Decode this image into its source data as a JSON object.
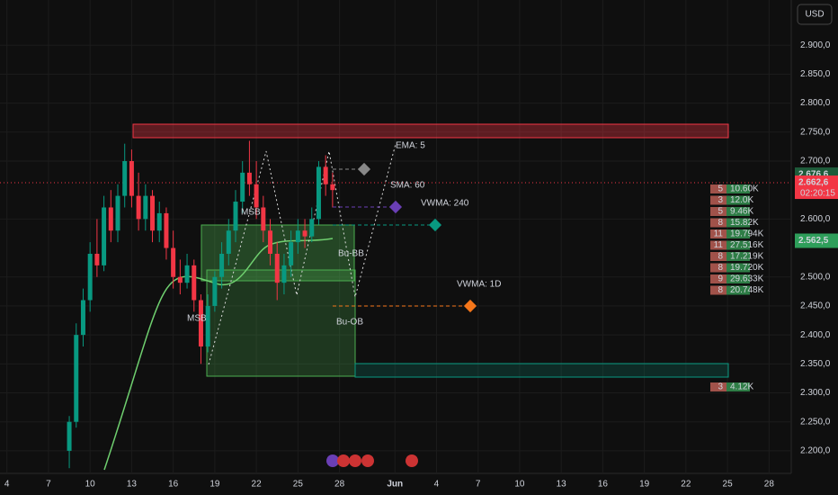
{
  "chart_data": {
    "type": "candlestick",
    "currency": "USD",
    "x": [
      4.5,
      5,
      5.5,
      6,
      6.5,
      7,
      7.5,
      8,
      8.5,
      9,
      9.5,
      10,
      10.5,
      11,
      11.5,
      12,
      12.5,
      13,
      13.5,
      14,
      14.5,
      15,
      15.5,
      16,
      16.5,
      17,
      17.5,
      18,
      18.5,
      19,
      19.5,
      20,
      20.5,
      21,
      21.5,
      22,
      22.5,
      23,
      23.5
    ],
    "open": [
      2200,
      2250,
      2400,
      2460,
      2540,
      2520,
      2620,
      2580,
      2640,
      2700,
      2640,
      2600,
      2640,
      2580,
      2610,
      2550,
      2500,
      2490,
      2520,
      2460,
      2380,
      2450,
      2500,
      2540,
      2580,
      2630,
      2680,
      2660,
      2620,
      2580,
      2540,
      2490,
      2520,
      2560,
      2580,
      2570,
      2600,
      2690,
      2660
    ],
    "high": [
      2260,
      2420,
      2480,
      2560,
      2600,
      2640,
      2650,
      2660,
      2730,
      2720,
      2680,
      2660,
      2650,
      2630,
      2620,
      2580,
      2530,
      2540,
      2530,
      2470,
      2470,
      2510,
      2560,
      2600,
      2650,
      2700,
      2735,
      2700,
      2640,
      2600,
      2560,
      2540,
      2580,
      2600,
      2600,
      2620,
      2700,
      2710,
      2680
    ],
    "low": [
      2170,
      2240,
      2380,
      2440,
      2500,
      2510,
      2560,
      2560,
      2620,
      2620,
      2580,
      2580,
      2560,
      2560,
      2530,
      2480,
      2470,
      2480,
      2440,
      2350,
      2370,
      2440,
      2480,
      2520,
      2560,
      2610,
      2640,
      2600,
      2560,
      2520,
      2460,
      2470,
      2500,
      2540,
      2550,
      2560,
      2590,
      2640,
      2620
    ],
    "close": [
      2250,
      2400,
      2460,
      2540,
      2520,
      2620,
      2580,
      2640,
      2700,
      2640,
      2600,
      2640,
      2580,
      2610,
      2550,
      2500,
      2490,
      2520,
      2460,
      2380,
      2450,
      2500,
      2540,
      2580,
      2630,
      2680,
      2660,
      2620,
      2580,
      2540,
      2490,
      2520,
      2560,
      2580,
      2570,
      2600,
      2690,
      2660,
      2650
    ],
    "up_color": "#089981",
    "down_color": "#f23645",
    "xlim": [
      -0.5,
      56.6
    ],
    "ylim": [
      2161,
      2978
    ],
    "grid": true,
    "xticks": [
      {
        "value": 0,
        "label": "4"
      },
      {
        "value": 3,
        "label": "7"
      },
      {
        "value": 6,
        "label": "10"
      },
      {
        "value": 9,
        "label": "13"
      },
      {
        "value": 12,
        "label": "16"
      },
      {
        "value": 15,
        "label": "19"
      },
      {
        "value": 18,
        "label": "22"
      },
      {
        "value": 21,
        "label": "25"
      },
      {
        "value": 24,
        "label": "28"
      },
      {
        "value": 28,
        "label": "Jun"
      },
      {
        "value": 31,
        "label": "4"
      },
      {
        "value": 34,
        "label": "7"
      },
      {
        "value": 37,
        "label": "10"
      },
      {
        "value": 40,
        "label": "13"
      },
      {
        "value": 43,
        "label": "16"
      },
      {
        "value": 46,
        "label": "19"
      },
      {
        "value": 49,
        "label": "22"
      },
      {
        "value": 52,
        "label": "25"
      },
      {
        "value": 55,
        "label": "28"
      }
    ],
    "yticks": [
      {
        "value": 2900,
        "label": "2.900,0"
      },
      {
        "value": 2850,
        "label": "2.850,0"
      },
      {
        "value": 2800,
        "label": "2.800,0"
      },
      {
        "value": 2750,
        "label": "2.750,0"
      },
      {
        "value": 2700,
        "label": "2.700,0"
      },
      {
        "value": 2600,
        "label": "2.600,0"
      },
      {
        "value": 2500,
        "label": "2.500,0"
      },
      {
        "value": 2450,
        "label": "2.450,0"
      },
      {
        "value": 2400,
        "label": "2.400,0"
      },
      {
        "value": 2350,
        "label": "2.350,0"
      },
      {
        "value": 2300,
        "label": "2.300,0"
      },
      {
        "value": 2250,
        "label": "2.250,0"
      },
      {
        "value": 2200,
        "label": "2.200,0"
      }
    ],
    "price_labels": [
      {
        "value": 2676.6,
        "label": "2.676,6",
        "color": "#1e5b3a"
      },
      {
        "value": 2662.6,
        "label": "2.662,6",
        "sub": "02:20:15",
        "color": "#f23645"
      },
      {
        "value": 2562.5,
        "label": "2.562,5",
        "color": "#2e9e5a"
      }
    ],
    "annotations": [
      "EMA: 5",
      "SMA: 60",
      "VWMA: 240",
      "VWMA: 1D",
      "MSB",
      "MSB",
      "Bu-BB",
      "Bu-OB"
    ],
    "volume_profile": [
      {
        "count": "5",
        "volume": "10.60K"
      },
      {
        "count": "3",
        "volume": "12.0K"
      },
      {
        "count": "5",
        "volume": "9.46K"
      },
      {
        "count": "8",
        "volume": "15.82K"
      },
      {
        "count": "11",
        "volume": "19.794K"
      },
      {
        "count": "11",
        "volume": "27.516K"
      },
      {
        "count": "8",
        "volume": "17.219K"
      },
      {
        "count": "8",
        "volume": "19.720K"
      },
      {
        "count": "9",
        "volume": "29.633K"
      },
      {
        "count": "8",
        "volume": "20.748K"
      },
      {
        "count": "3",
        "volume": "4.12K"
      }
    ]
  }
}
